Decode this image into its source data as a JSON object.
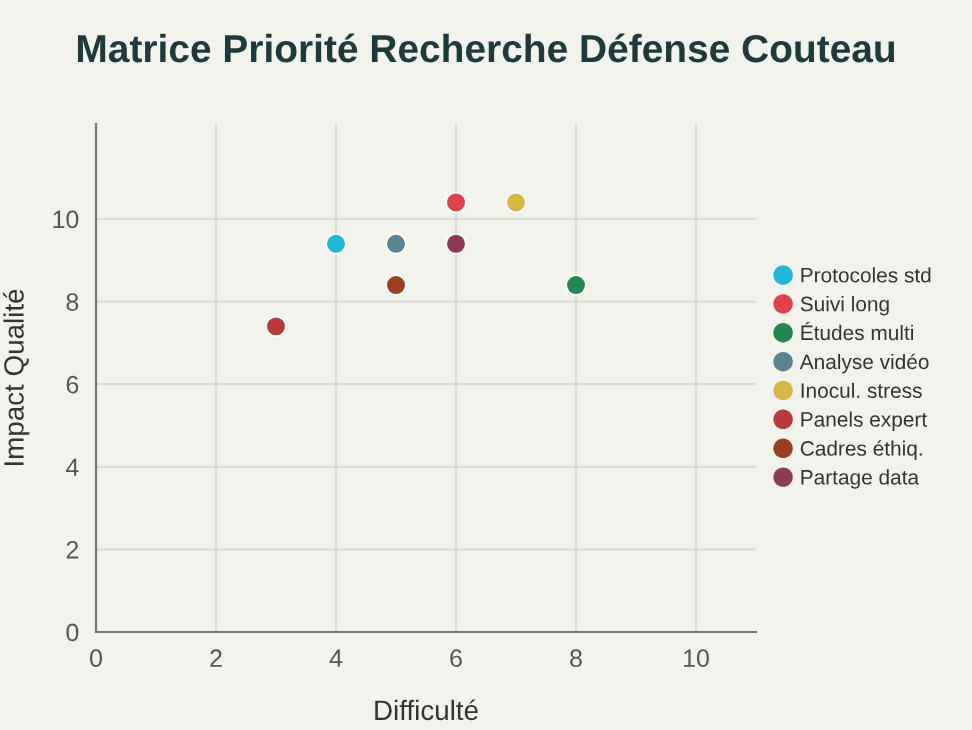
{
  "chart_data": {
    "type": "scatter",
    "title": "Matrice Priorité Recherche Défense Couteau",
    "xlabel": "Difficulté",
    "ylabel": "Impact Qualité",
    "xlim": [
      0,
      11
    ],
    "ylim": [
      0,
      12.3
    ],
    "xticks": [
      0,
      2,
      4,
      6,
      8,
      10
    ],
    "yticks": [
      0,
      2,
      4,
      6,
      8,
      10
    ],
    "grid": true,
    "legend": "right",
    "marker": "circle",
    "series": [
      {
        "name": "Protocoles std",
        "color": "#1fb8d8",
        "x": [
          4
        ],
        "values": [
          9.4
        ]
      },
      {
        "name": "Suivi long",
        "color": "#e0404a",
        "x": [
          6
        ],
        "values": [
          10.4
        ]
      },
      {
        "name": "Études multi",
        "color": "#22884f",
        "x": [
          8
        ],
        "values": [
          8.4
        ]
      },
      {
        "name": "Analyse vidéo",
        "color": "#5a8590",
        "x": [
          5
        ],
        "values": [
          9.4
        ]
      },
      {
        "name": "Inocul. stress",
        "color": "#d8b844",
        "x": [
          7
        ],
        "values": [
          10.4
        ]
      },
      {
        "name": "Panels expert",
        "color": "#b83a3a",
        "x": [
          3
        ],
        "values": [
          7.4
        ]
      },
      {
        "name": "Cadres éthiq.",
        "color": "#9a4020",
        "x": [
          5
        ],
        "values": [
          8.4
        ]
      },
      {
        "name": "Partage data",
        "color": "#8e3a55",
        "x": [
          6
        ],
        "values": [
          9.4
        ]
      }
    ]
  }
}
